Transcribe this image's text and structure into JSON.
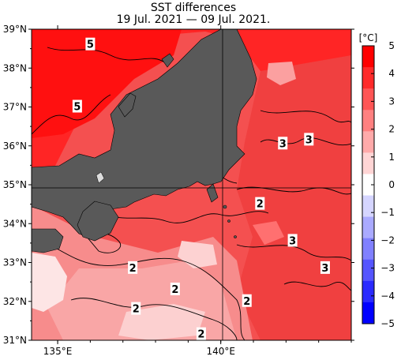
{
  "map": {
    "title": "SST differences",
    "subtitle": "19 Jul. 2021 — 09 Jul. 2021.",
    "lat_labels": [
      "39°N",
      "38°N",
      "37°N",
      "36°N",
      "35°N",
      "34°N",
      "33°N",
      "32°N",
      "31°N"
    ],
    "lon_labels": [
      "135°E",
      "140°E"
    ],
    "contour_labels": [
      {
        "text": "5",
        "lon": 136.0,
        "lat": 38.6
      },
      {
        "text": "5",
        "lon": 135.6,
        "lat": 37.0
      },
      {
        "text": "3",
        "lon": 141.9,
        "lat": 36.05
      },
      {
        "text": "3",
        "lon": 142.7,
        "lat": 36.15
      },
      {
        "text": "2",
        "lon": 141.2,
        "lat": 34.5
      },
      {
        "text": "3",
        "lon": 142.2,
        "lat": 33.55
      },
      {
        "text": "3",
        "lon": 143.2,
        "lat": 32.85
      },
      {
        "text": "2",
        "lon": 137.3,
        "lat": 32.85
      },
      {
        "text": "2",
        "lon": 138.6,
        "lat": 32.3
      },
      {
        "text": "2",
        "lon": 137.4,
        "lat": 31.8
      },
      {
        "text": "2",
        "lon": 140.8,
        "lat": 32.0
      },
      {
        "text": "2",
        "lon": 139.4,
        "lat": 31.15
      }
    ]
  },
  "colorbar": {
    "unit": "[°C]",
    "ticks": [
      "5",
      "4",
      "3",
      "2",
      "1",
      "0",
      "−1",
      "−2",
      "−3",
      "−4",
      "−5"
    ],
    "colors": [
      "#ff0000",
      "#ff2a2a",
      "#ff5555",
      "#ff8080",
      "#ffaaaa",
      "#ffd5d5",
      "#ffffff",
      "#d5d5ff",
      "#aaaaff",
      "#8080ff",
      "#5555ff",
      "#2a2aff",
      "#0000ff"
    ]
  },
  "colors": {
    "land": "#595959",
    "sea_hot": "#ff2020",
    "sea_warm": "#f55252",
    "sea_mild": "#f88888",
    "sea_cool": "#fcc8c8"
  }
}
